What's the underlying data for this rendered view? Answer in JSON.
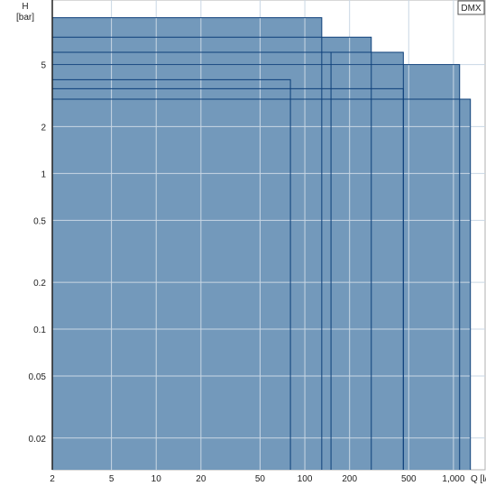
{
  "chart_data": {
    "type": "area",
    "title": "",
    "legend": {
      "label": "DMX",
      "placement": "top-right"
    },
    "ylabel": {
      "line1": "H",
      "line2": "[bar]"
    },
    "xlabel": "Q [l/h]",
    "x_scale": "log",
    "y_scale": "log",
    "xlim": [
      2,
      1400
    ],
    "ylim": [
      0.0125,
      13
    ],
    "grid": true,
    "x_ticks": [
      {
        "value": 2,
        "label": "2"
      },
      {
        "value": 5,
        "label": "5"
      },
      {
        "value": 10,
        "label": "10"
      },
      {
        "value": 20,
        "label": "20"
      },
      {
        "value": 50,
        "label": "50"
      },
      {
        "value": 100,
        "label": "100"
      },
      {
        "value": 200,
        "label": "200"
      },
      {
        "value": 500,
        "label": "500"
      },
      {
        "value": 1000,
        "label": "1,000"
      }
    ],
    "y_ticks": [
      {
        "value": 0.02,
        "label": "0.02"
      },
      {
        "value": 0.05,
        "label": "0.05"
      },
      {
        "value": 0.1,
        "label": "0.1"
      },
      {
        "value": 0.2,
        "label": "0.2"
      },
      {
        "value": 0.5,
        "label": "0.5"
      },
      {
        "value": 1,
        "label": "1"
      },
      {
        "value": 2,
        "label": "2"
      },
      {
        "value": 5,
        "label": "5"
      }
    ],
    "series": [
      {
        "qmax": 1300,
        "hmax": 3
      },
      {
        "qmax": 1100,
        "hmax": 5
      },
      {
        "qmax": 460,
        "hmax": 3.5
      },
      {
        "qmax": 80,
        "hmax": 4
      },
      {
        "qmax": 460,
        "hmax": 6
      },
      {
        "qmax": 150,
        "hmax": 6
      },
      {
        "qmax": 280,
        "hmax": 7.5
      },
      {
        "qmax": 130,
        "hmax": 10
      }
    ],
    "colors": {
      "fill": "#7399bb",
      "stroke": "#0d3f7a",
      "grid": "#c9d7e4",
      "frame": "#b0b0b0"
    }
  }
}
